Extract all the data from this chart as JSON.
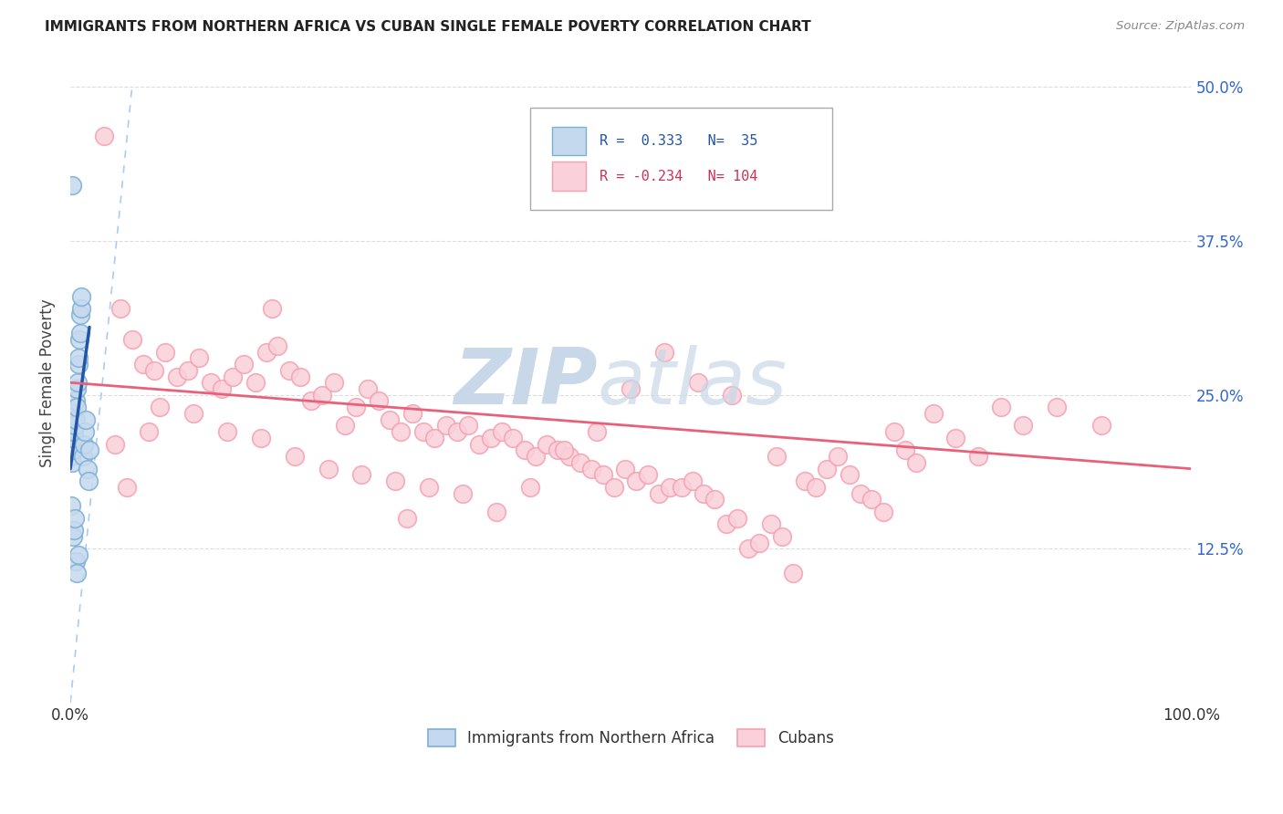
{
  "title": "IMMIGRANTS FROM NORTHERN AFRICA VS CUBAN SINGLE FEMALE POVERTY CORRELATION CHART",
  "source": "Source: ZipAtlas.com",
  "ylabel": "Single Female Poverty",
  "yticks": [
    0.0,
    12.5,
    25.0,
    37.5,
    50.0
  ],
  "ytick_labels_right": [
    "",
    "12.5%",
    "25.0%",
    "37.5%",
    "50.0%"
  ],
  "legend_label_blue": "Immigrants from Northern Africa",
  "legend_label_pink": "Cubans",
  "blue_scatter_x": [
    0.05,
    0.1,
    0.15,
    0.2,
    0.25,
    0.3,
    0.35,
    0.4,
    0.45,
    0.5,
    0.55,
    0.6,
    0.65,
    0.7,
    0.75,
    0.8,
    0.85,
    0.9,
    0.95,
    1.0,
    1.1,
    1.2,
    1.3,
    1.4,
    1.5,
    1.6,
    1.7,
    0.1,
    0.2,
    0.3,
    0.4,
    0.5,
    0.6,
    0.7,
    0.15
  ],
  "blue_scatter_y": [
    20.0,
    21.0,
    19.5,
    20.5,
    21.5,
    22.0,
    23.5,
    22.5,
    23.0,
    24.5,
    24.0,
    25.5,
    26.0,
    27.5,
    28.0,
    29.5,
    30.0,
    31.5,
    32.0,
    33.0,
    20.0,
    21.0,
    22.0,
    23.0,
    19.0,
    18.0,
    20.5,
    16.0,
    13.5,
    14.0,
    15.0,
    11.5,
    10.5,
    12.0,
    42.0
  ],
  "pink_scatter_x": [
    3.0,
    4.5,
    5.5,
    6.5,
    7.5,
    8.5,
    9.5,
    10.5,
    11.5,
    12.5,
    13.5,
    14.5,
    15.5,
    16.5,
    17.5,
    18.5,
    19.5,
    20.5,
    21.5,
    22.5,
    23.5,
    24.5,
    25.5,
    26.5,
    27.5,
    28.5,
    29.5,
    30.5,
    31.5,
    32.5,
    33.5,
    34.5,
    35.5,
    36.5,
    37.5,
    38.5,
    39.5,
    40.5,
    41.5,
    42.5,
    43.5,
    44.5,
    45.5,
    46.5,
    47.5,
    48.5,
    49.5,
    50.5,
    51.5,
    52.5,
    53.5,
    54.5,
    55.5,
    56.5,
    57.5,
    58.5,
    59.5,
    60.5,
    61.5,
    62.5,
    63.5,
    64.5,
    65.5,
    66.5,
    67.5,
    68.5,
    69.5,
    70.5,
    71.5,
    72.5,
    73.5,
    74.5,
    75.5,
    77.0,
    79.0,
    81.0,
    83.0,
    85.0,
    88.0,
    92.0,
    5.0,
    8.0,
    11.0,
    14.0,
    17.0,
    20.0,
    23.0,
    26.0,
    29.0,
    32.0,
    35.0,
    38.0,
    41.0,
    44.0,
    47.0,
    50.0,
    53.0,
    56.0,
    59.0,
    63.0,
    4.0,
    7.0,
    18.0,
    30.0
  ],
  "pink_scatter_y": [
    46.0,
    32.0,
    29.5,
    27.5,
    27.0,
    28.5,
    26.5,
    27.0,
    28.0,
    26.0,
    25.5,
    26.5,
    27.5,
    26.0,
    28.5,
    29.0,
    27.0,
    26.5,
    24.5,
    25.0,
    26.0,
    22.5,
    24.0,
    25.5,
    24.5,
    23.0,
    22.0,
    23.5,
    22.0,
    21.5,
    22.5,
    22.0,
    22.5,
    21.0,
    21.5,
    22.0,
    21.5,
    20.5,
    20.0,
    21.0,
    20.5,
    20.0,
    19.5,
    19.0,
    18.5,
    17.5,
    19.0,
    18.0,
    18.5,
    17.0,
    17.5,
    17.5,
    18.0,
    17.0,
    16.5,
    14.5,
    15.0,
    12.5,
    13.0,
    14.5,
    13.5,
    10.5,
    18.0,
    17.5,
    19.0,
    20.0,
    18.5,
    17.0,
    16.5,
    15.5,
    22.0,
    20.5,
    19.5,
    23.5,
    21.5,
    20.0,
    24.0,
    22.5,
    24.0,
    22.5,
    17.5,
    24.0,
    23.5,
    22.0,
    21.5,
    20.0,
    19.0,
    18.5,
    18.0,
    17.5,
    17.0,
    15.5,
    17.5,
    20.5,
    22.0,
    25.5,
    28.5,
    26.0,
    25.0,
    20.0,
    21.0,
    22.0,
    32.0,
    15.0
  ],
  "blue_line_x": [
    0.0,
    1.7
  ],
  "blue_line_y": [
    19.0,
    30.5
  ],
  "pink_line_x": [
    0.0,
    100.0
  ],
  "pink_line_y": [
    26.0,
    19.0
  ],
  "diag_line_x": [
    0.0,
    5.5
  ],
  "diag_line_y": [
    0.0,
    50.0
  ],
  "blue_color": "#7BAFD4",
  "pink_color": "#F4A0B0",
  "blue_fill_color": "#C5D9EE",
  "pink_fill_color": "#FAD0DA",
  "blue_line_color": "#2255AA",
  "pink_line_color": "#E8607A",
  "diag_color": "#AACCEE",
  "watermark_zip": "ZIP",
  "watermark_atlas": "atlas",
  "watermark_color": "#C8D8E8",
  "background_color": "#FFFFFF",
  "xlim": [
    0.0,
    100.0
  ],
  "ylim": [
    0.0,
    52.0
  ],
  "grid_color": "#DDDDDD"
}
